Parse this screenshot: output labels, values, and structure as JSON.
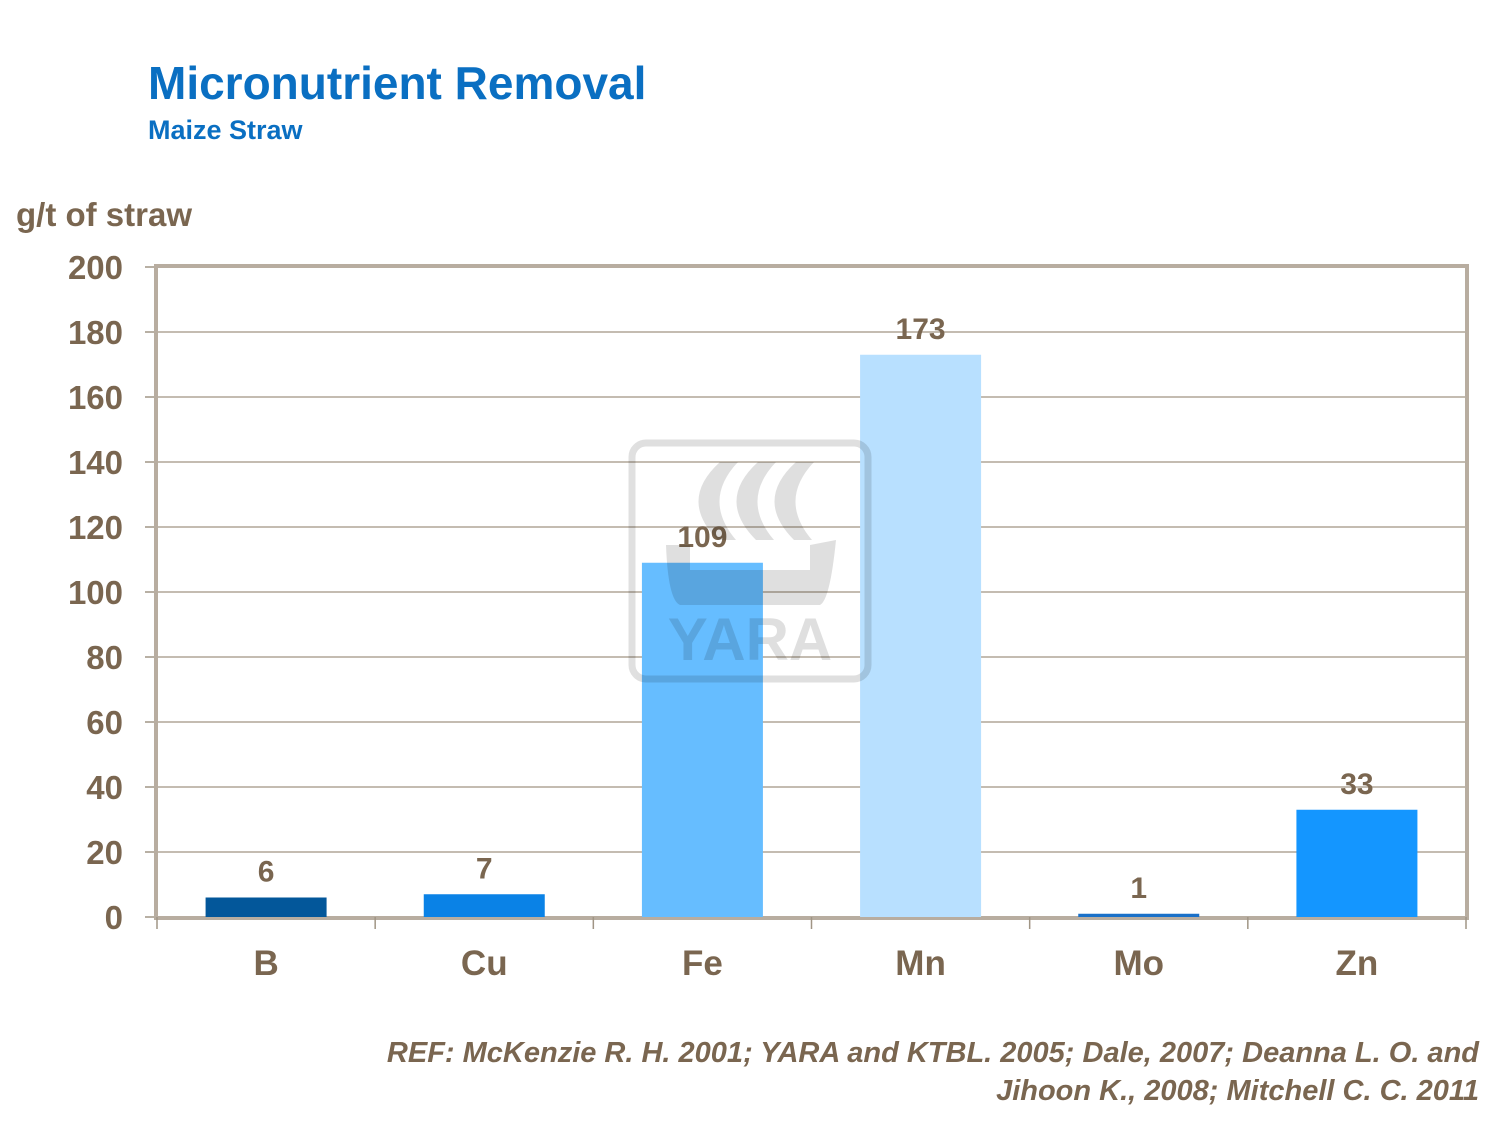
{
  "chart_data": {
    "type": "bar",
    "title": "Micronutrient Removal",
    "subtitle": "Maize Straw",
    "ylabel": "g/t of straw",
    "xlabel": "",
    "categories": [
      "B",
      "Cu",
      "Fe",
      "Mn",
      "Mo",
      "Zn"
    ],
    "values": [
      6,
      7,
      109,
      173,
      1,
      33
    ],
    "colors": [
      "#03579a",
      "#0a82e6",
      "#66bdff",
      "#b8e0ff",
      "#1a70c8",
      "#1496ff"
    ],
    "ylim": [
      0,
      200
    ],
    "yticks": [
      0,
      20,
      40,
      60,
      80,
      100,
      120,
      140,
      160,
      180,
      200
    ],
    "grid": true,
    "data_labels": true
  },
  "watermark": "YARA",
  "reference": {
    "line1": "REF: McKenzie R. H. 2001;  YARA and KTBL. 2005;  Dale, 2007;  Deanna L. O. and",
    "line2": "Jihoon K.,   2008; Mitchell C. C. 2011"
  }
}
